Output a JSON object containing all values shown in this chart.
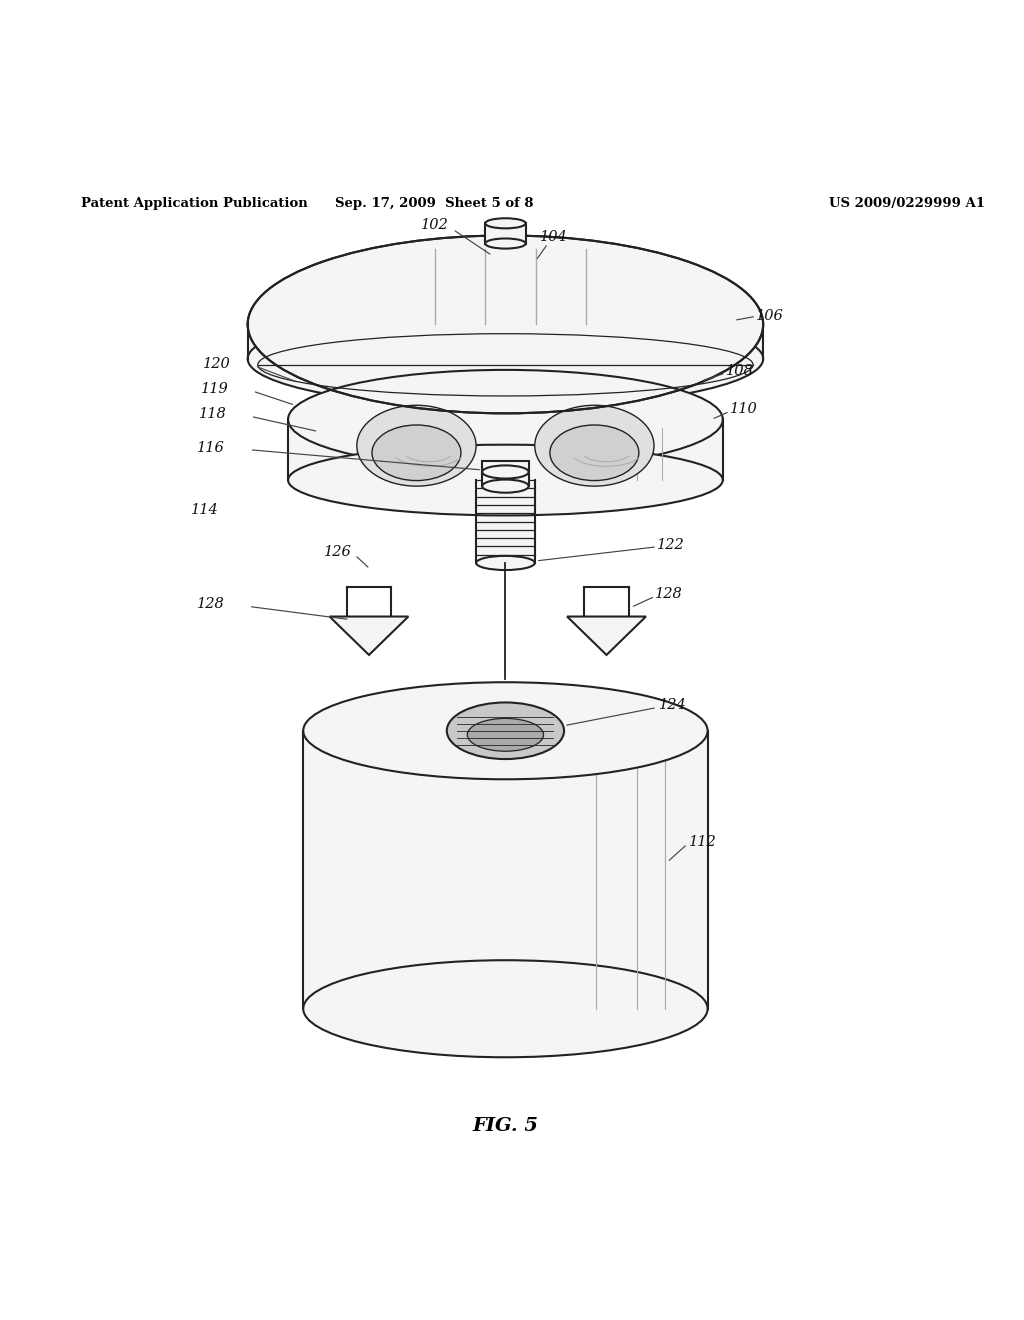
{
  "bg_color": "#ffffff",
  "header_left": "Patent Application Publication",
  "header_mid": "Sep. 17, 2009  Sheet 5 of 8",
  "header_right": "US 2009/0229999 A1",
  "figure_label": "FIG. 5",
  "color_line": "#222222",
  "color_fill": "#f5f5f5",
  "lw_main": 1.5,
  "lw_thin": 1.0
}
